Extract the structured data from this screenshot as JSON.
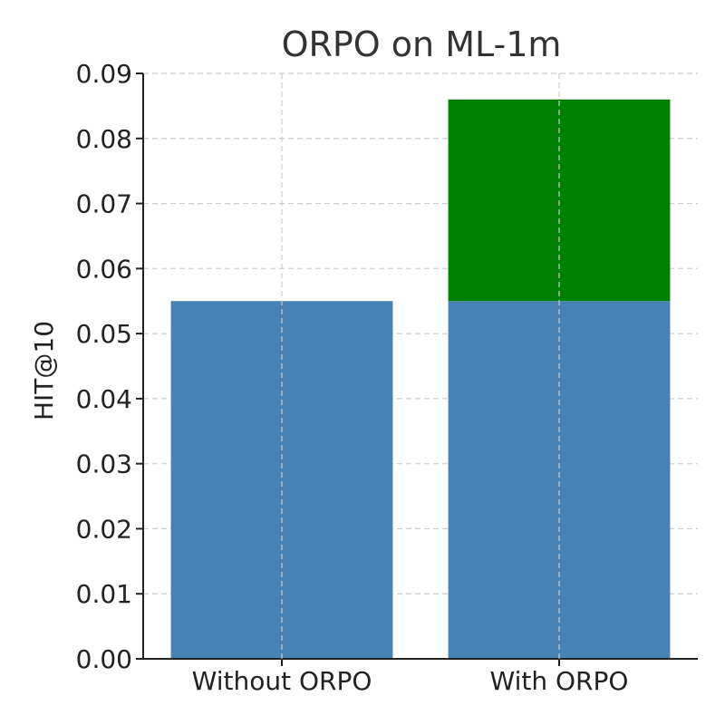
{
  "chart_data": {
    "type": "bar",
    "stacked": true,
    "title": "ORPO on ML-1m",
    "xlabel": "",
    "ylabel": "HIT@10",
    "categories": [
      "Without ORPO",
      "With ORPO"
    ],
    "series": [
      {
        "values": [
          0.055,
          0.055
        ],
        "color": "#4682b4"
      },
      {
        "values": [
          0,
          0.031
        ],
        "color": "#008000"
      }
    ],
    "ylim": [
      0,
      0.09
    ],
    "yticks": [
      0.0,
      0.01,
      0.02,
      0.03,
      0.04,
      0.05,
      0.06,
      0.07,
      0.08,
      0.09
    ],
    "ytick_labels": [
      "0.00",
      "0.01",
      "0.02",
      "0.03",
      "0.04",
      "0.05",
      "0.06",
      "0.07",
      "0.08",
      "0.09"
    ],
    "grid": true,
    "legend": "none"
  }
}
